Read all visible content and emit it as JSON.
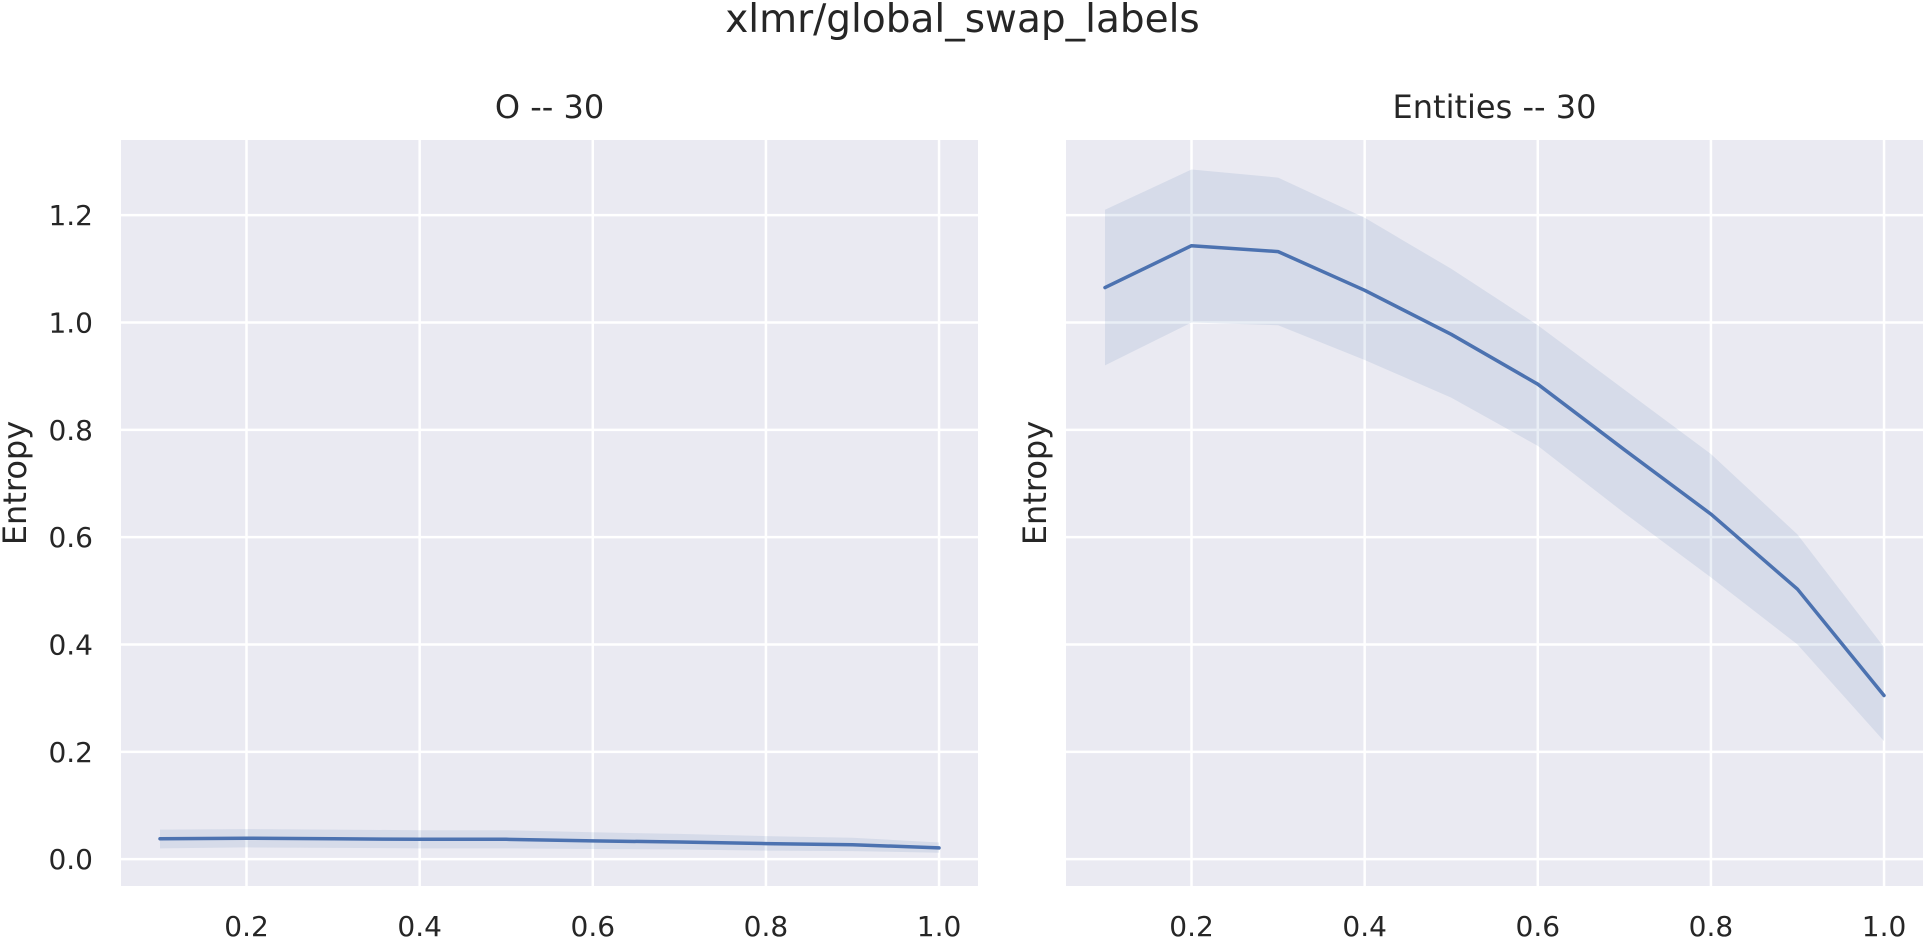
{
  "figure_title": "xlmr/global_swap_labels",
  "colors": {
    "line": "#4c72b0",
    "band": "#4c72b0",
    "panel_bg": "#eaeaf2",
    "grid": "#ffffff"
  },
  "chart_data": [
    {
      "type": "line",
      "title": "O -- 30",
      "xlabel": "",
      "ylabel": "Entropy",
      "grid": true,
      "xlim": [
        0.055,
        1.045
      ],
      "ylim": [
        -0.05,
        1.34
      ],
      "xticks": [
        "0.2",
        "0.4",
        "0.6",
        "0.8",
        "1.0"
      ],
      "yticks": [
        "0.0",
        "0.2",
        "0.4",
        "0.6",
        "0.8",
        "1.0",
        "1.2"
      ],
      "x": [
        0.1,
        0.2,
        0.3,
        0.4,
        0.5,
        0.6,
        0.7,
        0.8,
        0.9,
        1.0
      ],
      "y": [
        0.038,
        0.039,
        0.038,
        0.037,
        0.037,
        0.034,
        0.032,
        0.029,
        0.027,
        0.021
      ],
      "ci_lower": [
        0.02,
        0.022,
        0.021,
        0.02,
        0.02,
        0.019,
        0.018,
        0.016,
        0.015,
        0.012
      ],
      "ci_upper": [
        0.055,
        0.056,
        0.055,
        0.054,
        0.054,
        0.05,
        0.047,
        0.043,
        0.04,
        0.031
      ]
    },
    {
      "type": "line",
      "title": "Entities -- 30",
      "xlabel": "",
      "ylabel": "Entropy",
      "grid": true,
      "xlim": [
        0.055,
        1.045
      ],
      "ylim": [
        -0.05,
        1.34
      ],
      "xticks": [
        "0.2",
        "0.4",
        "0.6",
        "0.8",
        "1.0"
      ],
      "yticks": [],
      "x": [
        0.1,
        0.2,
        0.3,
        0.4,
        0.5,
        0.6,
        0.7,
        0.8,
        0.9,
        1.0
      ],
      "y": [
        1.065,
        1.143,
        1.132,
        1.06,
        0.978,
        0.885,
        0.763,
        0.643,
        0.503,
        0.305
      ],
      "ci_lower": [
        0.92,
        1.0,
        0.995,
        0.93,
        0.86,
        0.77,
        0.645,
        0.525,
        0.4,
        0.22
      ],
      "ci_upper": [
        1.21,
        1.285,
        1.27,
        1.195,
        1.1,
        0.995,
        0.875,
        0.755,
        0.605,
        0.395
      ]
    }
  ]
}
